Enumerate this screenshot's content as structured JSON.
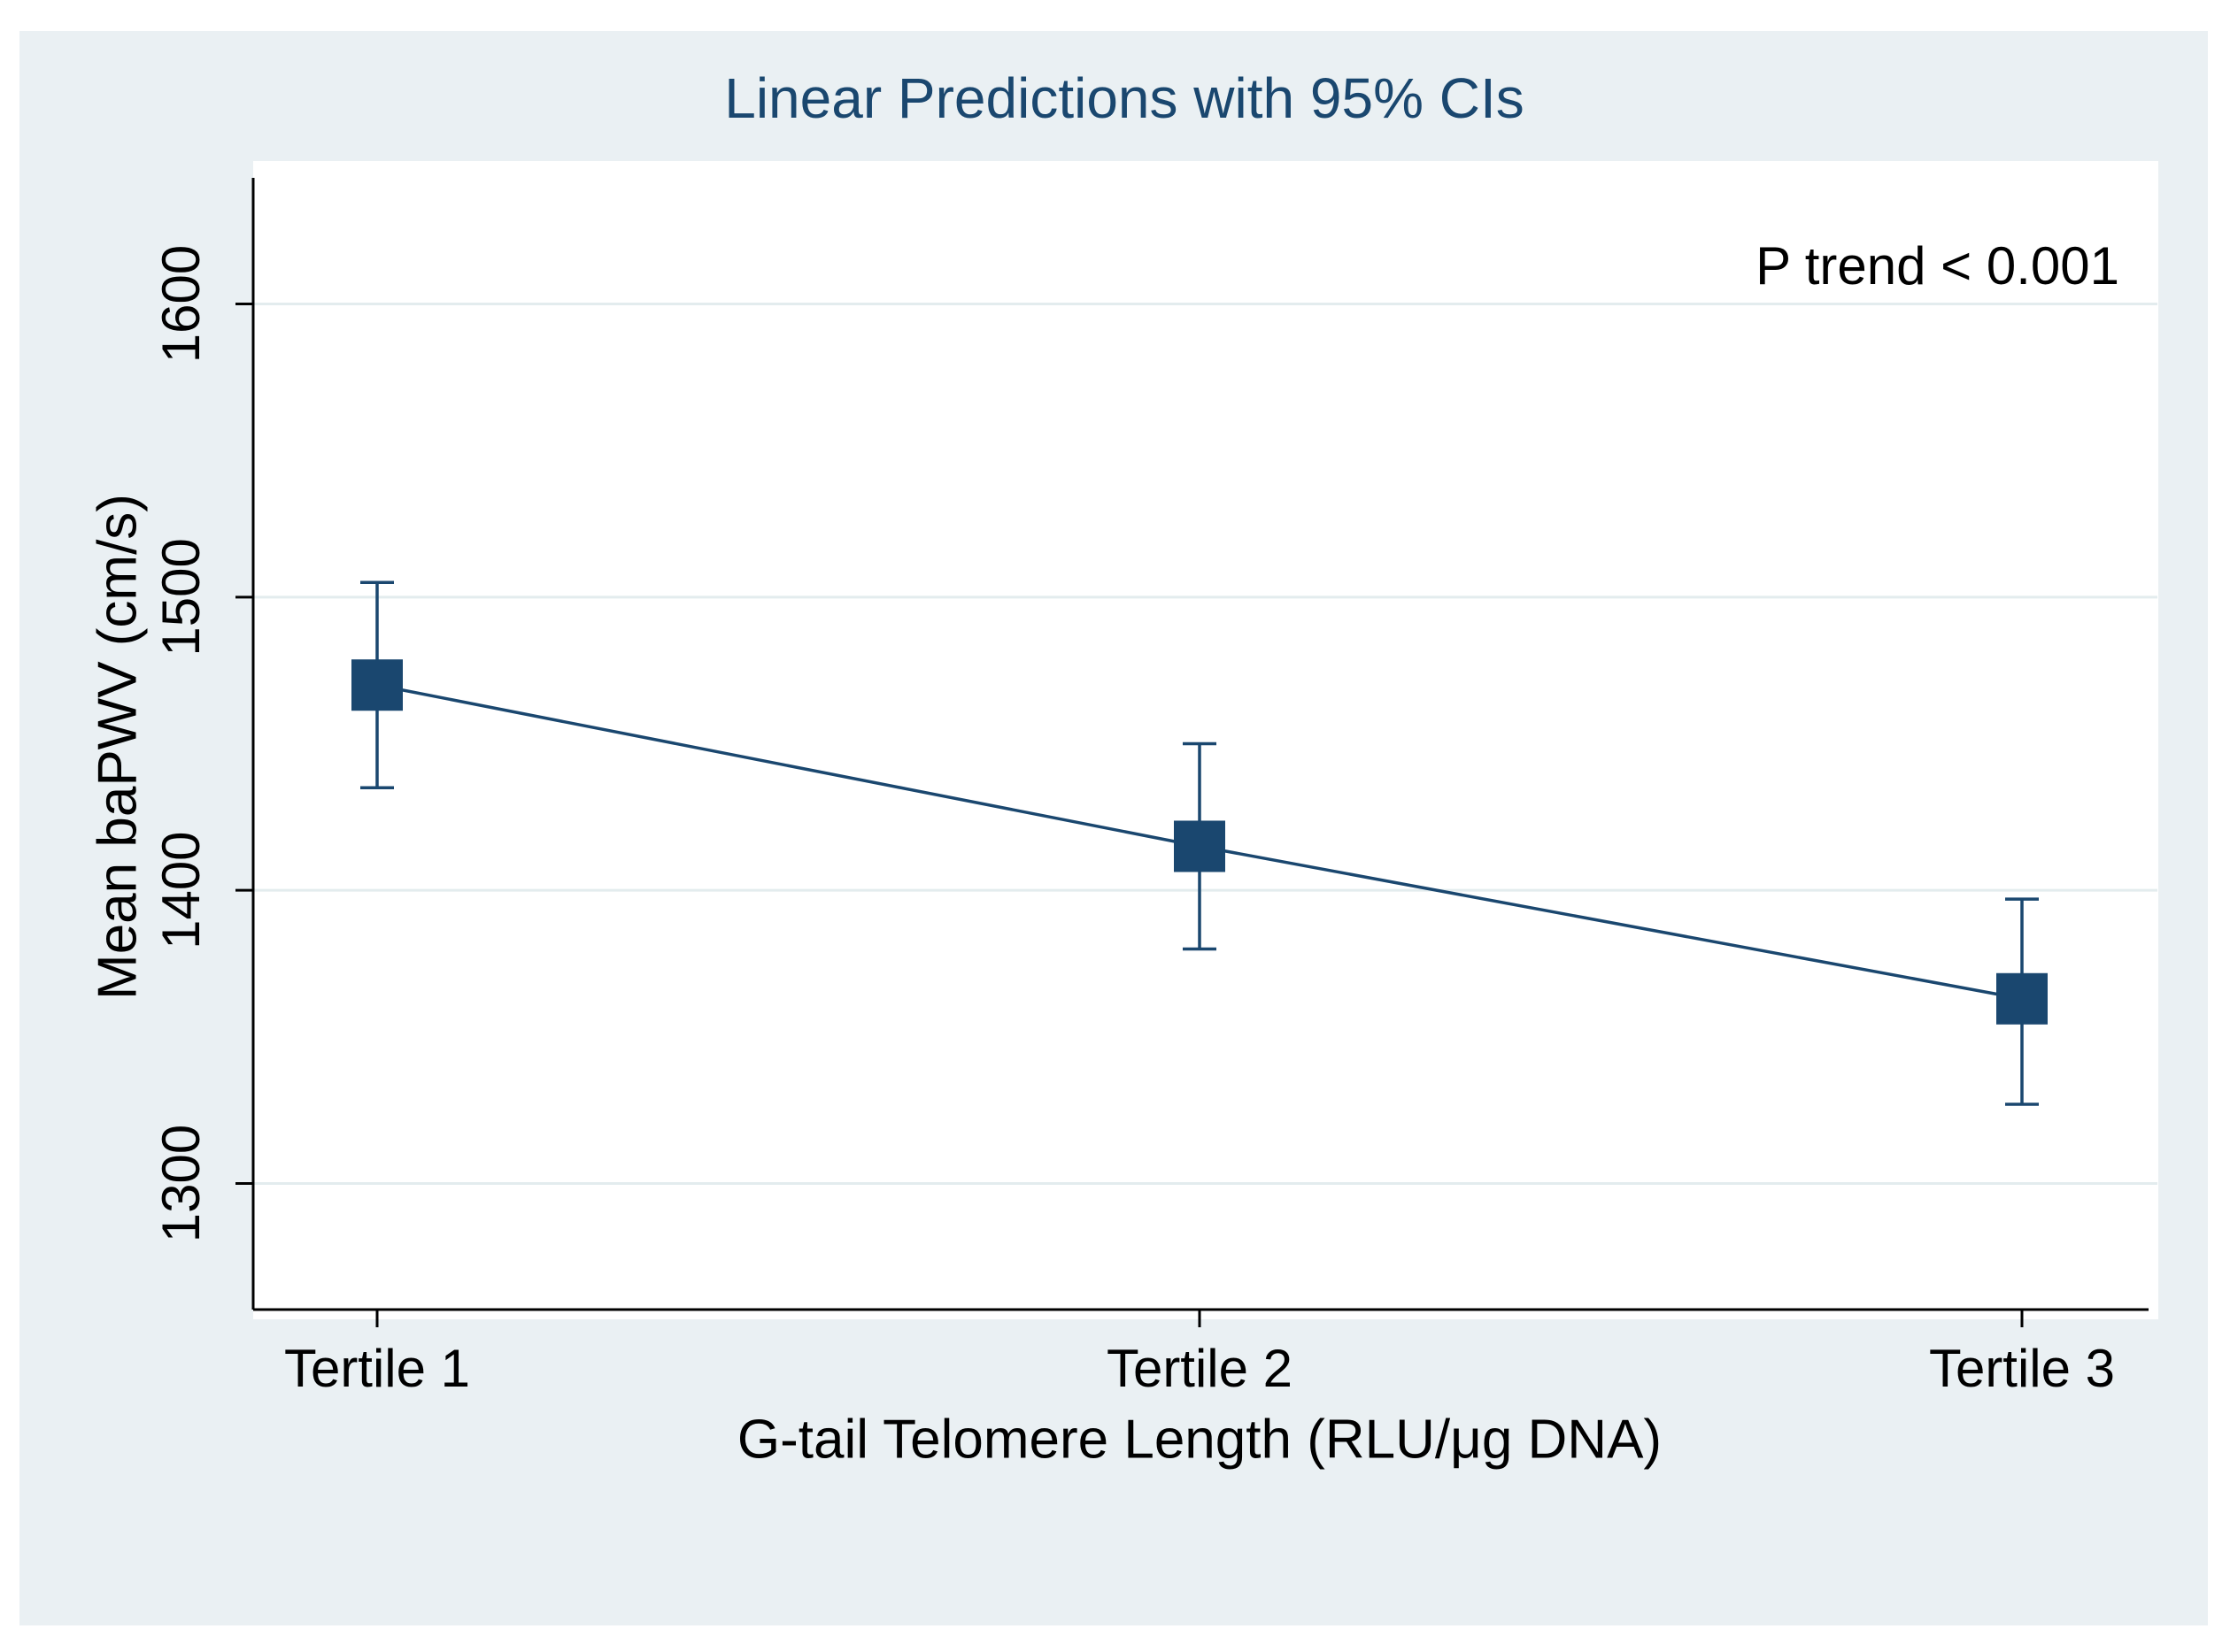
{
  "chart_data": {
    "type": "line",
    "title": "Linear Predictions with 95% CIs",
    "annotation": "P trend < 0.001",
    "x_label": "G-tail Telomere Length (RLU/μg DNA)",
    "y_label": "Mean baPWV (cm/s)",
    "categories": [
      "Tertile 1",
      "Tertile 2",
      "Tertile 3"
    ],
    "values": [
      1470,
      1415,
      1363
    ],
    "lower": [
      1435,
      1380,
      1327
    ],
    "upper": [
      1505,
      1450,
      1397
    ],
    "color": "#1a476f",
    "ylim": [
      1257,
      1643
    ],
    "yticks": [
      1300,
      1400,
      1500,
      1600
    ],
    "grid": true
  }
}
